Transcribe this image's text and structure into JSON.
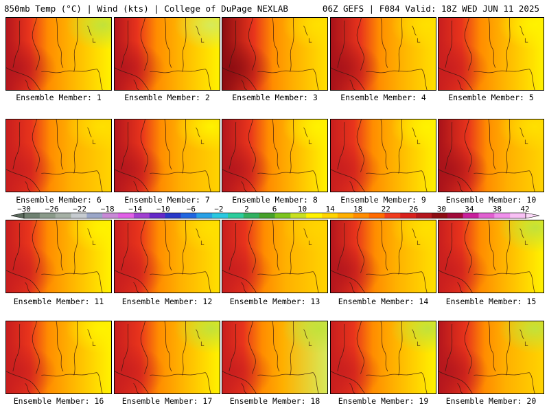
{
  "header": {
    "left": "850mb Temp (°C) | Wind (kts) | College of DuPage NEXLAB",
    "right": "06Z GEFS | F084 Valid: 18Z WED JUN 11 2025"
  },
  "caption_prefix": "Ensemble Member: ",
  "members": [
    {
      "label": "Ensemble Member: 1",
      "west": "#b4161d",
      "east": "#fff200",
      "ne": "#c2e23a",
      "hot": 0.55
    },
    {
      "label": "Ensemble Member: 2",
      "west": "#b4161d",
      "east": "#fff200",
      "ne": "#d6ea5a",
      "hot": 0.55
    },
    {
      "label": "Ensemble Member: 3",
      "west": "#8c0c12",
      "east": "#ffe000",
      "ne": "#ffe000",
      "hot": 0.75
    },
    {
      "label": "Ensemble Member: 4",
      "west": "#a8121a",
      "east": "#ffe000",
      "ne": "#ffe000",
      "hot": 0.7
    },
    {
      "label": "Ensemble Member: 5",
      "west": "#c81e1e",
      "east": "#fff200",
      "ne": "#fff200",
      "hot": 0.55
    },
    {
      "label": "Ensemble Member: 6",
      "west": "#c81e1e",
      "east": "#ffd400",
      "ne": "#ffe000",
      "hot": 0.6
    },
    {
      "label": "Ensemble Member: 7",
      "west": "#b4161d",
      "east": "#ffd400",
      "ne": "#fff200",
      "hot": 0.65
    },
    {
      "label": "Ensemble Member: 8",
      "west": "#b4161d",
      "east": "#fff200",
      "ne": "#fff200",
      "hot": 0.65
    },
    {
      "label": "Ensemble Member: 9",
      "west": "#c81e1e",
      "east": "#fff200",
      "ne": "#fff200",
      "hot": 0.55
    },
    {
      "label": "Ensemble Member: 10",
      "west": "#a8121a",
      "east": "#ffd400",
      "ne": "#ffe000",
      "hot": 0.7
    },
    {
      "label": "Ensemble Member: 11",
      "west": "#c81e1e",
      "east": "#fff200",
      "ne": "#fff200",
      "hot": 0.55
    },
    {
      "label": "Ensemble Member: 12",
      "west": "#c81e1e",
      "east": "#ffe000",
      "ne": "#ffe000",
      "hot": 0.6
    },
    {
      "label": "Ensemble Member: 13",
      "west": "#c81e1e",
      "east": "#ffd400",
      "ne": "#ffd400",
      "hot": 0.55
    },
    {
      "label": "Ensemble Member: 14",
      "west": "#b4161d",
      "east": "#ffe000",
      "ne": "#ffe000",
      "hot": 0.6
    },
    {
      "label": "Ensemble Member: 15",
      "west": "#c81e1e",
      "east": "#fff200",
      "ne": "#c2e23a",
      "hot": 0.55
    },
    {
      "label": "Ensemble Member: 16",
      "west": "#c81e1e",
      "east": "#fff200",
      "ne": "#fff200",
      "hot": 0.55
    },
    {
      "label": "Ensemble Member: 17",
      "west": "#c81e1e",
      "east": "#fff200",
      "ne": "#c2e23a",
      "hot": 0.6
    },
    {
      "label": "Ensemble Member: 18",
      "west": "#c81e1e",
      "east": "#d6ea5a",
      "ne": "#c2e23a",
      "hot": 0.5
    },
    {
      "label": "Ensemble Member: 19",
      "west": "#c81e1e",
      "east": "#fff200",
      "ne": "#c2e23a",
      "hot": 0.55
    },
    {
      "label": "Ensemble Member: 20",
      "west": "#b4161d",
      "east": "#ffd400",
      "ne": "#c2e23a",
      "hot": 0.65
    }
  ],
  "colorbar": {
    "labels": [
      "−30",
      "−26",
      "−22",
      "−18",
      "−14",
      "−10",
      "−6",
      "−2",
      "2",
      "6",
      "10",
      "14",
      "18",
      "22",
      "26",
      "30",
      "34",
      "38",
      "42"
    ],
    "colors": [
      "#6e8070",
      "#8a9a8a",
      "#a5b0a5",
      "#c6cbd0",
      "#9aa6c8",
      "#c88ad6",
      "#e060e6",
      "#a040d0",
      "#6428c8",
      "#2838c8",
      "#2066e0",
      "#28a0e6",
      "#2ac8e0",
      "#2ccc9c",
      "#30b060",
      "#46a02a",
      "#7cc41e",
      "#c8e020",
      "#fff200",
      "#ffd400",
      "#ffb000",
      "#ff8c00",
      "#ff6a00",
      "#f03c1e",
      "#d8201c",
      "#b4161d",
      "#8c0c12",
      "#a00a3a",
      "#c8209c",
      "#e060d0",
      "#f090ec",
      "#f8c0f4"
    ]
  }
}
